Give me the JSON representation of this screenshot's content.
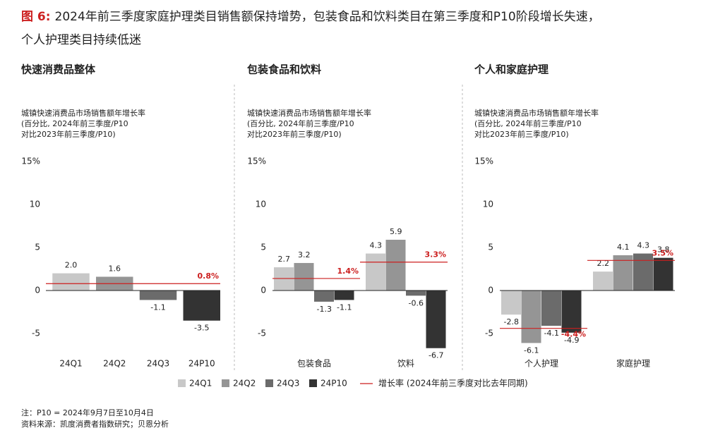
{
  "figure_label": "图 6:",
  "title_lines": [
    "2024年前三季度家庭护理类目销售额保持增势，包装食品和饮料类目在第三季度和P10阶段增长失速，",
    "个人护理类目持续低迷"
  ],
  "chart_data": [
    {
      "type": "bar",
      "title": "快速消费品整体",
      "y_label": [
        "城镇快速消费品市场销售额年增长率",
        "(百分比, 2024年前三季度/P10",
        "对比2023年前三季度/P10)"
      ],
      "categories": [
        "24Q1",
        "24Q2",
        "24Q3",
        "24P10"
      ],
      "values": [
        2.0,
        1.6,
        -1.1,
        -3.5
      ],
      "value_labels": [
        "2.0",
        "1.6",
        "-1.1",
        "-3.5"
      ],
      "colors": [
        "#c8c8c8",
        "#959595",
        "#6b6b6b",
        "#333333"
      ],
      "growth": {
        "values": [
          0.8
        ],
        "value_labels": [
          "0.8%"
        ],
        "color": "#cc1f1f"
      },
      "ylim": [
        -7.5,
        15
      ],
      "yticks": [
        {
          "value": 15,
          "label": "15%"
        },
        10,
        5,
        0,
        -5
      ]
    },
    {
      "type": "grouped_bar",
      "title": "包装食品和饮料",
      "y_label": [
        "城镇快速消费品市场销售额年增长率",
        "(百分比, 2024年前三季度/P10",
        "对比2023年前三季度/P10)"
      ],
      "categories": [
        "包装食品",
        "饮料"
      ],
      "series": [
        {
          "name": "24Q1",
          "color": "#c8c8c8",
          "values": [
            2.7,
            4.3
          ]
        },
        {
          "name": "24Q2",
          "color": "#959595",
          "values": [
            3.2,
            5.9
          ]
        },
        {
          "name": "24Q3",
          "color": "#6b6b6b",
          "values": [
            -1.3,
            -0.6
          ]
        },
        {
          "name": "24P10",
          "color": "#333333",
          "values": [
            -1.1,
            -6.7
          ]
        }
      ],
      "growth": {
        "name": "增长率 (2024年前三季度对比去年同期)",
        "values": [
          1.4,
          3.3
        ],
        "value_labels": [
          "1.4%",
          "3.3%"
        ],
        "color": "#cc1f1f"
      },
      "ylim": [
        -7.5,
        15
      ],
      "yticks": [
        {
          "value": 15,
          "label": "15%"
        },
        10,
        5,
        0,
        -5
      ]
    },
    {
      "type": "grouped_bar",
      "title": "个人和家庭护理",
      "y_label": [
        "城镇快速消费品市场销售额年增长率",
        "(百分比, 2024年前三季度/P10",
        "对比2023年前三季度/P10)"
      ],
      "categories": [
        "个人护理",
        "家庭护理"
      ],
      "series": [
        {
          "color": "#c8c8c8",
          "values": [
            -2.8,
            2.2
          ]
        },
        {
          "color": "#959595",
          "values": [
            -6.1,
            4.1
          ]
        },
        {
          "color": "#6b6b6b",
          "values": [
            -4.1,
            4.3
          ]
        },
        {
          "color": "#333333",
          "values": [
            -4.9,
            3.8
          ]
        }
      ],
      "growth": {
        "values": [
          -4.4,
          3.5
        ],
        "value_labels": [
          "-4.4%",
          "3.5%"
        ],
        "color": "#cc1f1f"
      },
      "ylim": [
        -7.5,
        15
      ],
      "yticks": [
        {
          "value": 15,
          "label": "15%"
        },
        10,
        5,
        0,
        -5
      ]
    }
  ],
  "notes": [
    "注：P10 = 2024年9月7日至10月4日",
    "资料来源：凯度消费者指数研究；贝恩分析"
  ]
}
